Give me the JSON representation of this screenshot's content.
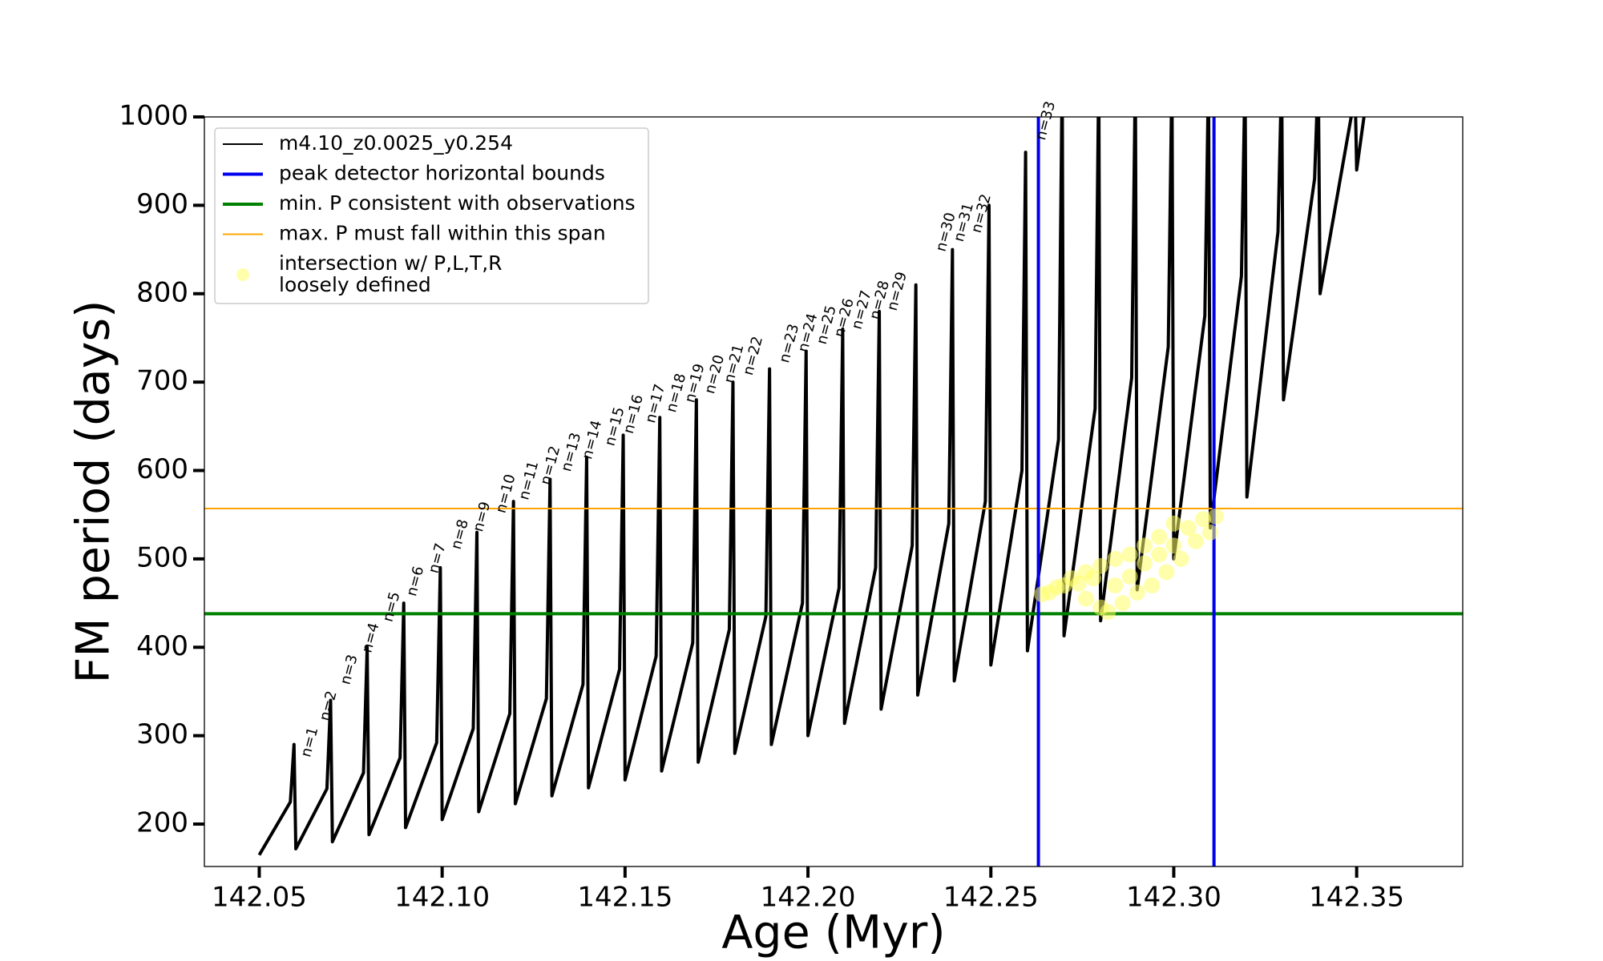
{
  "chart_data": {
    "type": "line",
    "xlabel": "Age (Myr)",
    "ylabel": "FM period (days)",
    "xlim": [
      142.035,
      142.379
    ],
    "ylim": [
      152,
      1000
    ],
    "xticks": [
      142.05,
      {
        "value": 142.1,
        "label": "142.10"
      },
      142.15,
      {
        "value": 142.2,
        "label": "142.20"
      },
      142.25,
      {
        "value": 142.3,
        "label": "142.30"
      },
      142.35
    ],
    "yticks": [
      200,
      300,
      400,
      500,
      600,
      700,
      800,
      900,
      1000
    ],
    "legend": "upper left",
    "series": [
      {
        "name": "m4.10_z0.0025_y0.254",
        "color": "#000000",
        "x": [
          142.05,
          142.0585,
          142.0595,
          142.06,
          142.0685,
          142.0695,
          142.07,
          142.0785,
          142.0795,
          142.08,
          142.0885,
          142.0895,
          142.09,
          142.0985,
          142.0995,
          142.1,
          142.1085,
          142.1095,
          142.11,
          142.1185,
          142.1195,
          142.12,
          142.1285,
          142.1295,
          142.13,
          142.1385,
          142.1395,
          142.14,
          142.1485,
          142.1495,
          142.15,
          142.1585,
          142.1595,
          142.16,
          142.1685,
          142.1695,
          142.17,
          142.1785,
          142.1795,
          142.18,
          142.1885,
          142.1895,
          142.19,
          142.1985,
          142.1995,
          142.2,
          142.2085,
          142.2095,
          142.21,
          142.2185,
          142.2195,
          142.22,
          142.2285,
          142.2295,
          142.23,
          142.2385,
          142.2395,
          142.24,
          142.2485,
          142.2495,
          142.25,
          142.2585,
          142.2595,
          142.26,
          142.2685,
          142.2695,
          142.27,
          142.2785,
          142.2795,
          142.28,
          142.2885,
          142.2895,
          142.29,
          142.2985,
          142.2995,
          142.3,
          142.3085,
          142.3095,
          142.31,
          142.3185,
          142.3195,
          142.32,
          142.3285,
          142.3295,
          142.33,
          142.3385,
          142.3395,
          142.34,
          142.3485,
          142.3495,
          142.35,
          142.352
        ],
        "y": [
          165,
          225,
          290,
          172,
          240,
          340,
          180,
          258,
          400,
          188,
          275,
          450,
          196,
          292,
          490,
          205,
          308,
          530,
          214,
          325,
          565,
          223,
          342,
          590,
          232,
          358,
          615,
          241,
          375,
          640,
          250,
          390,
          660,
          260,
          405,
          680,
          270,
          420,
          700,
          280,
          435,
          715,
          290,
          450,
          735,
          300,
          467,
          760,
          314,
          490,
          780,
          330,
          515,
          810,
          346,
          540,
          850,
          362,
          565,
          900,
          380,
          600,
          960,
          396,
          635,
          1050,
          413,
          670,
          1050,
          430,
          705,
          1050,
          465,
          740,
          1050,
          500,
          775,
          1050,
          535,
          820,
          1050,
          570,
          870,
          1050,
          680,
          930,
          1050,
          800,
          1000,
          1050,
          940,
          1000
        ]
      }
    ],
    "vlines": {
      "name": "peak detector horizontal bounds",
      "color": "#0000ee",
      "values": [
        142.263,
        142.311
      ]
    },
    "hlines": [
      {
        "name": "min. P consistent with observations",
        "color": "#008000",
        "value": 438
      },
      {
        "name": "max. P must fall within this span",
        "color": "#ffa500",
        "value": 557
      }
    ],
    "scatter": {
      "name": "intersection w/ P,L,T,R\nloosely defined",
      "color": "#ffff66",
      "x": [
        142.264,
        142.266,
        142.268,
        142.27,
        142.272,
        142.274,
        142.276,
        142.278,
        142.28,
        142.282,
        142.284,
        142.286,
        142.288,
        142.29,
        142.292,
        142.294,
        142.296,
        142.298,
        142.3,
        142.302,
        142.304,
        142.306,
        142.308,
        142.31,
        142.3115,
        142.276,
        142.28,
        142.284,
        142.288,
        142.292,
        142.296,
        142.3
      ],
      "y": [
        460,
        462,
        468,
        470,
        478,
        472,
        485,
        478,
        492,
        440,
        500,
        450,
        505,
        462,
        515,
        470,
        525,
        485,
        540,
        500,
        535,
        520,
        545,
        530,
        548,
        455,
        445,
        470,
        480,
        495,
        505,
        515
      ]
    },
    "annotations": [
      {
        "text": "n=1",
        "x": 142.0628,
        "y": 276
      },
      {
        "text": "n=2",
        "x": 142.0679,
        "y": 317
      },
      {
        "text": "n=3",
        "x": 142.0736,
        "y": 358
      },
      {
        "text": "n=4",
        "x": 142.0795,
        "y": 394
      },
      {
        "text": "n=5",
        "x": 142.0852,
        "y": 429
      },
      {
        "text": "n=6",
        "x": 142.0917,
        "y": 458
      },
      {
        "text": "n=7",
        "x": 142.0977,
        "y": 484
      },
      {
        "text": "n=8",
        "x": 142.1039,
        "y": 511
      },
      {
        "text": "n=9",
        "x": 142.1099,
        "y": 531
      },
      {
        "text": "n=10",
        "x": 142.1161,
        "y": 552
      },
      {
        "text": "n=11",
        "x": 142.1224,
        "y": 567
      },
      {
        "text": "n=12",
        "x": 142.1283,
        "y": 584
      },
      {
        "text": "n=13",
        "x": 142.134,
        "y": 599
      },
      {
        "text": "n=14",
        "x": 142.1397,
        "y": 613
      },
      {
        "text": "n=15",
        "x": 142.1459,
        "y": 628
      },
      {
        "text": "n=16",
        "x": 142.151,
        "y": 642
      },
      {
        "text": "n=17",
        "x": 142.157,
        "y": 654
      },
      {
        "text": "n=18",
        "x": 142.1627,
        "y": 666
      },
      {
        "text": "n=19",
        "x": 142.1678,
        "y": 677
      },
      {
        "text": "n=20",
        "x": 142.1732,
        "y": 687
      },
      {
        "text": "n=21",
        "x": 142.1785,
        "y": 699
      },
      {
        "text": "n=22",
        "x": 142.1837,
        "y": 708
      },
      {
        "text": "n=23",
        "x": 142.1936,
        "y": 722
      },
      {
        "text": "n=24",
        "x": 142.1987,
        "y": 734
      },
      {
        "text": "n=25",
        "x": 142.2038,
        "y": 743
      },
      {
        "text": "n=26",
        "x": 142.2086,
        "y": 751
      },
      {
        "text": "n=27",
        "x": 142.2134,
        "y": 760
      },
      {
        "text": "n=28",
        "x": 142.2183,
        "y": 771
      },
      {
        "text": "n=29",
        "x": 142.2231,
        "y": 781
      },
      {
        "text": "n=30",
        "x": 142.2364,
        "y": 848
      },
      {
        "text": "n=31",
        "x": 142.2413,
        "y": 859
      },
      {
        "text": "n=32",
        "x": 142.2461,
        "y": 869
      },
      {
        "text": "n=33",
        "x": 142.2637,
        "y": 974
      }
    ]
  }
}
